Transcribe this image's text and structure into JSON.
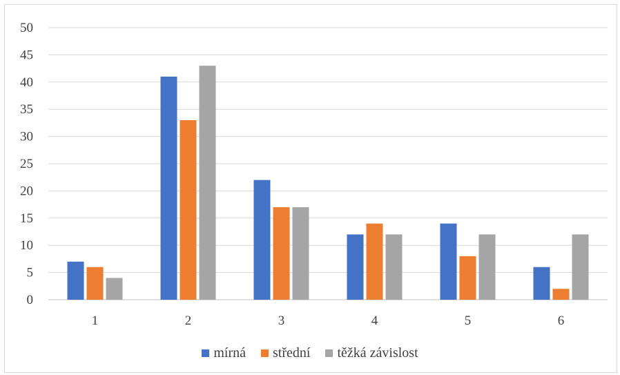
{
  "chart_data": {
    "type": "bar",
    "categories": [
      "1",
      "2",
      "3",
      "4",
      "5",
      "6"
    ],
    "series": [
      {
        "name": "mírná",
        "color": "#4472C4",
        "values": [
          7,
          41,
          22,
          12,
          14,
          6
        ]
      },
      {
        "name": "střední",
        "color": "#ED7D31",
        "values": [
          6,
          33,
          17,
          14,
          8,
          2
        ]
      },
      {
        "name": "těžká závislost",
        "color": "#A5A5A5",
        "values": [
          4,
          43,
          17,
          12,
          12,
          12
        ]
      }
    ],
    "ylim": [
      0,
      50
    ],
    "yticks": [
      "0",
      "5",
      "10",
      "15",
      "20",
      "25",
      "30",
      "35",
      "40",
      "45",
      "50"
    ],
    "grid": true,
    "legend_position": "bottom",
    "title": "",
    "xlabel": "",
    "ylabel": ""
  }
}
